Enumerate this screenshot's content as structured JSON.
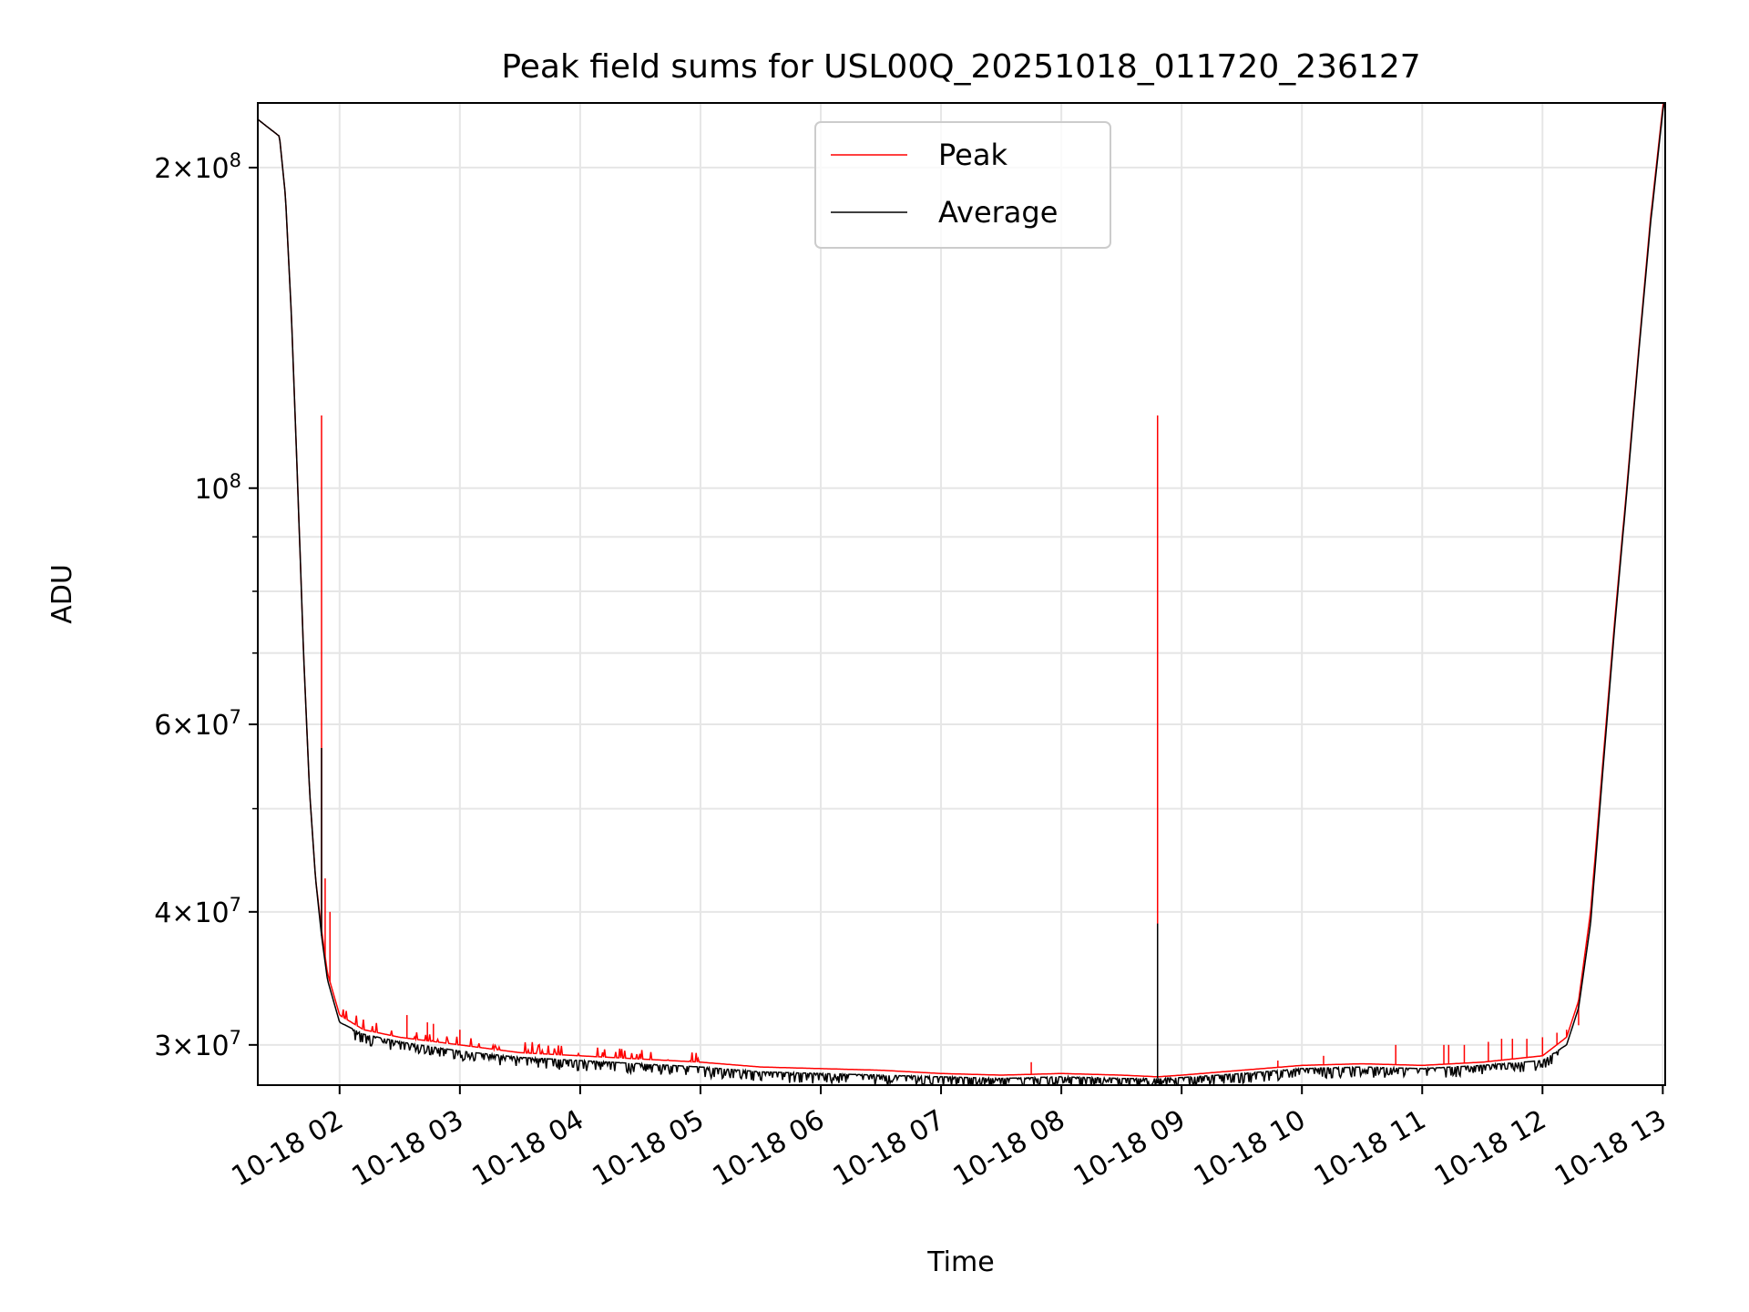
{
  "chart_data": {
    "type": "line",
    "title": "Peak field sums for USL00Q_20251018_011720_236127",
    "xlabel": "Time",
    "ylabel": "ADU",
    "yscale": "log",
    "xlim": [
      1.32,
      13.02
    ],
    "ylim": [
      27500000,
      230000000
    ],
    "grid": true,
    "legend_position": "top-center",
    "x_ticks": [
      {
        "value": 2,
        "label": "10-18 02"
      },
      {
        "value": 3,
        "label": "10-18 03"
      },
      {
        "value": 4,
        "label": "10-18 04"
      },
      {
        "value": 5,
        "label": "10-18 05"
      },
      {
        "value": 6,
        "label": "10-18 06"
      },
      {
        "value": 7,
        "label": "10-18 07"
      },
      {
        "value": 8,
        "label": "10-18 08"
      },
      {
        "value": 9,
        "label": "10-18 09"
      },
      {
        "value": 10,
        "label": "10-18 10"
      },
      {
        "value": 11,
        "label": "10-18 11"
      },
      {
        "value": 12,
        "label": "10-18 12"
      },
      {
        "value": 13,
        "label": "10-18 13"
      }
    ],
    "y_ticks": [
      {
        "value": 30000000,
        "mantissa": "3",
        "exponent": "7"
      },
      {
        "value": 40000000,
        "mantissa": "4",
        "exponent": "7"
      },
      {
        "value": 60000000,
        "mantissa": "6",
        "exponent": "7"
      },
      {
        "value": 100000000,
        "mantissa": "",
        "exponent": "8"
      },
      {
        "value": 200000000,
        "mantissa": "2",
        "exponent": "8"
      }
    ],
    "y_minor_ticks": [
      50000000,
      70000000,
      80000000,
      90000000
    ],
    "series": [
      {
        "name": "Peak",
        "color": "#ff0000",
        "x": [
          1.32,
          1.5,
          1.55,
          1.6,
          1.65,
          1.7,
          1.75,
          1.8,
          1.85,
          1.9,
          2.0,
          2.2,
          2.5,
          3.0,
          3.5,
          4.0,
          4.5,
          5.0,
          5.5,
          6.0,
          6.5,
          7.0,
          7.5,
          8.0,
          8.5,
          8.8,
          9.0,
          9.5,
          10.0,
          10.5,
          11.0,
          11.5,
          12.0,
          12.2,
          12.3,
          12.4,
          12.5,
          12.6,
          12.7,
          12.8,
          12.9,
          13.0,
          13.02
        ],
        "y": [
          222000000,
          214000000,
          188000000,
          145000000,
          102000000,
          70000000,
          52000000,
          43000000,
          38500000,
          35000000,
          32000000,
          31000000,
          30500000,
          30000000,
          29500000,
          29300000,
          29100000,
          28900000,
          28600000,
          28500000,
          28400000,
          28200000,
          28100000,
          28200000,
          28100000,
          28000000,
          28100000,
          28400000,
          28700000,
          28800000,
          28700000,
          28900000,
          29300000,
          30500000,
          33000000,
          40000000,
          55000000,
          75000000,
          100000000,
          135000000,
          180000000,
          228000000,
          235000000
        ],
        "spikes": [
          {
            "x": 1.85,
            "y": 117000000
          },
          {
            "x": 1.88,
            "y": 43000000
          },
          {
            "x": 1.92,
            "y": 40000000
          },
          {
            "x": 2.56,
            "y": 32000000
          },
          {
            "x": 2.73,
            "y": 31500000
          },
          {
            "x": 2.78,
            "y": 31400000
          },
          {
            "x": 3.0,
            "y": 31000000
          },
          {
            "x": 7.75,
            "y": 28900000
          },
          {
            "x": 8.8,
            "y": 117000000
          },
          {
            "x": 9.8,
            "y": 29000000
          },
          {
            "x": 10.18,
            "y": 29300000
          },
          {
            "x": 10.78,
            "y": 30000000
          },
          {
            "x": 11.18,
            "y": 30000000
          },
          {
            "x": 11.22,
            "y": 30000000
          },
          {
            "x": 11.35,
            "y": 30000000
          },
          {
            "x": 11.55,
            "y": 30200000
          },
          {
            "x": 11.66,
            "y": 30400000
          },
          {
            "x": 11.75,
            "y": 30400000
          },
          {
            "x": 11.87,
            "y": 30400000
          },
          {
            "x": 12.0,
            "y": 30500000
          },
          {
            "x": 12.12,
            "y": 30800000
          },
          {
            "x": 12.2,
            "y": 31000000
          },
          {
            "x": 12.3,
            "y": 31300000
          }
        ]
      },
      {
        "name": "Average",
        "color": "#000000",
        "x": [
          1.32,
          1.5,
          1.55,
          1.6,
          1.65,
          1.7,
          1.75,
          1.8,
          1.85,
          1.9,
          2.0,
          2.2,
          2.5,
          3.0,
          3.5,
          4.0,
          4.5,
          5.0,
          5.5,
          6.0,
          6.5,
          7.0,
          7.5,
          8.0,
          8.5,
          8.8,
          9.0,
          9.5,
          10.0,
          10.5,
          11.0,
          11.5,
          12.0,
          12.2,
          12.3,
          12.4,
          12.5,
          12.6,
          12.7,
          12.8,
          12.9,
          13.0,
          13.02
        ],
        "y": [
          222000000,
          214000000,
          188000000,
          145000000,
          102000000,
          70000000,
          52000000,
          43000000,
          38000000,
          34500000,
          31500000,
          30700000,
          30200000,
          29600000,
          29200000,
          29000000,
          28800000,
          28600000,
          28300000,
          28200000,
          28100000,
          28000000,
          27900000,
          28000000,
          27900000,
          27900000,
          27950000,
          28200000,
          28500000,
          28600000,
          28500000,
          28700000,
          29000000,
          30000000,
          32500000,
          39000000,
          54000000,
          74000000,
          99000000,
          134000000,
          178000000,
          226000000,
          233000000
        ],
        "spikes": [
          {
            "x": 1.85,
            "y": 57000000
          },
          {
            "x": 8.8,
            "y": 39000000
          }
        ]
      }
    ],
    "legend": [
      {
        "label": "Peak",
        "color": "#ff0000"
      },
      {
        "label": "Average",
        "color": "#000000"
      }
    ]
  }
}
